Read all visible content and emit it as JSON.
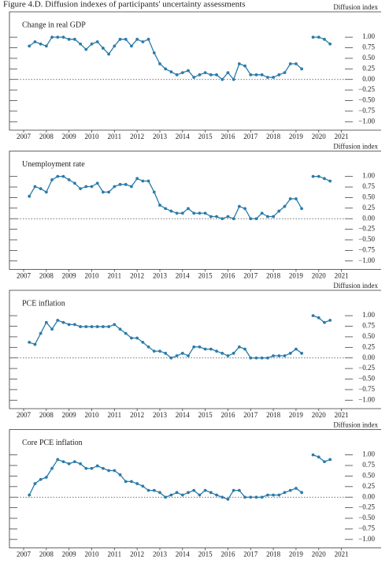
{
  "title": "Figure 4.D. Diffusion indexes of participants' uncertainty assessments",
  "chart_data": [
    {
      "type": "line",
      "title": "Change in real GDP",
      "y_axis_label": "Diffusion index",
      "color": "#2b7bab",
      "x": [
        2007.75,
        2008.0,
        2008.25,
        2008.5,
        2008.75,
        2009.0,
        2009.25,
        2009.5,
        2009.75,
        2010.0,
        2010.25,
        2010.5,
        2010.75,
        2011.0,
        2011.25,
        2011.5,
        2011.75,
        2012.0,
        2012.25,
        2012.5,
        2012.75,
        2013.0,
        2013.25,
        2013.5,
        2013.75,
        2014.0,
        2014.25,
        2014.5,
        2014.75,
        2015.0,
        2015.25,
        2015.5,
        2015.75,
        2016.0,
        2016.25,
        2016.5,
        2016.75,
        2017.0,
        2017.25,
        2017.5,
        2017.75,
        2018.0,
        2018.25,
        2018.5,
        2018.75,
        2019.0,
        2019.25,
        2019.5,
        2019.75,
        2020.0,
        2020.25,
        2020.5,
        2020.75,
        2021.0
      ],
      "values": [
        0.79,
        0.89,
        0.84,
        0.79,
        1.0,
        1.0,
        1.0,
        0.95,
        0.95,
        0.84,
        0.71,
        0.84,
        0.89,
        0.74,
        0.6,
        0.79,
        0.95,
        0.95,
        0.79,
        0.95,
        0.89,
        0.95,
        0.63,
        0.37,
        0.25,
        0.18,
        0.11,
        0.16,
        0.21,
        0.05,
        0.11,
        0.16,
        0.11,
        0.11,
        0.0,
        0.16,
        0.0,
        0.37,
        0.32,
        0.11,
        0.11,
        0.11,
        0.05,
        0.05,
        0.11,
        0.16,
        0.37,
        0.37,
        0.25,
        null,
        1.0,
        1.0,
        0.95,
        0.84
      ],
      "xlim": [
        2006.875,
        2022.0
      ],
      "xticks": [
        {
          "value": 2007.5,
          "label": "2007"
        },
        {
          "value": 2008.5,
          "label": "2008"
        },
        {
          "value": 2009.5,
          "label": "2009"
        },
        {
          "value": 2010.5,
          "label": "2010"
        },
        {
          "value": 2011.5,
          "label": "2011"
        },
        {
          "value": 2012.5,
          "label": "2012"
        },
        {
          "value": 2013.5,
          "label": "2013"
        },
        {
          "value": 2014.5,
          "label": "2014"
        },
        {
          "value": 2015.5,
          "label": "2015"
        },
        {
          "value": 2016.5,
          "label": "2016"
        },
        {
          "value": 2017.5,
          "label": "2017"
        },
        {
          "value": 2018.5,
          "label": "2018"
        },
        {
          "value": 2019.5,
          "label": "2019"
        },
        {
          "value": 2020.5,
          "label": "2020"
        },
        {
          "value": 2021.5,
          "label": "2021"
        }
      ],
      "ylim": [
        -1.2,
        1.6
      ],
      "yticks": [
        {
          "value": 1,
          "label": "1.00"
        },
        {
          "value": 0.75,
          "label": "0.75"
        },
        {
          "value": 0.5,
          "label": "0.50"
        },
        {
          "value": 0.25,
          "label": "0.25"
        },
        {
          "value": 0,
          "label": "0.00"
        },
        {
          "value": -0.25,
          "label": "−0.25"
        },
        {
          "value": -0.5,
          "label": "−0.50"
        },
        {
          "value": -0.75,
          "label": "−0.75"
        },
        {
          "value": -1,
          "label": "−1.00"
        }
      ]
    },
    {
      "type": "line",
      "title": "Unemployment rate",
      "y_axis_label": "Diffusion index",
      "color": "#2b7bab",
      "x": [
        2007.75,
        2008.0,
        2008.25,
        2008.5,
        2008.75,
        2009.0,
        2009.25,
        2009.5,
        2009.75,
        2010.0,
        2010.25,
        2010.5,
        2010.75,
        2011.0,
        2011.25,
        2011.5,
        2011.75,
        2012.0,
        2012.25,
        2012.5,
        2012.75,
        2013.0,
        2013.25,
        2013.5,
        2013.75,
        2014.0,
        2014.25,
        2014.5,
        2014.75,
        2015.0,
        2015.25,
        2015.5,
        2015.75,
        2016.0,
        2016.25,
        2016.5,
        2016.75,
        2017.0,
        2017.25,
        2017.5,
        2017.75,
        2018.0,
        2018.25,
        2018.5,
        2018.75,
        2019.0,
        2019.25,
        2019.5,
        2019.75,
        2020.0,
        2020.25,
        2020.5,
        2020.75,
        2021.0
      ],
      "values": [
        0.53,
        0.76,
        0.71,
        0.63,
        0.92,
        1.0,
        1.0,
        0.92,
        0.84,
        0.71,
        0.76,
        0.76,
        0.84,
        0.63,
        0.63,
        0.76,
        0.81,
        0.81,
        0.76,
        0.95,
        0.89,
        0.89,
        0.63,
        0.32,
        0.24,
        0.18,
        0.13,
        0.13,
        0.24,
        0.13,
        0.13,
        0.13,
        0.05,
        0.05,
        0.0,
        0.05,
        0.0,
        0.29,
        0.24,
        0.0,
        0.0,
        0.13,
        0.05,
        0.05,
        0.18,
        0.29,
        0.47,
        0.47,
        0.24,
        null,
        1.0,
        1.0,
        0.95,
        0.89
      ],
      "xlim": [
        2006.875,
        2022.0
      ],
      "xticks": [
        {
          "value": 2007.5,
          "label": "2007"
        },
        {
          "value": 2008.5,
          "label": "2008"
        },
        {
          "value": 2009.5,
          "label": "2009"
        },
        {
          "value": 2010.5,
          "label": "2010"
        },
        {
          "value": 2011.5,
          "label": "2011"
        },
        {
          "value": 2012.5,
          "label": "2012"
        },
        {
          "value": 2013.5,
          "label": "2013"
        },
        {
          "value": 2014.5,
          "label": "2014"
        },
        {
          "value": 2015.5,
          "label": "2015"
        },
        {
          "value": 2016.5,
          "label": "2016"
        },
        {
          "value": 2017.5,
          "label": "2017"
        },
        {
          "value": 2018.5,
          "label": "2018"
        },
        {
          "value": 2019.5,
          "label": "2019"
        },
        {
          "value": 2020.5,
          "label": "2020"
        },
        {
          "value": 2021.5,
          "label": "2021"
        }
      ],
      "ylim": [
        -1.2,
        1.6
      ],
      "yticks": [
        {
          "value": 1,
          "label": "1.00"
        },
        {
          "value": 0.75,
          "label": "0.75"
        },
        {
          "value": 0.5,
          "label": "0.50"
        },
        {
          "value": 0.25,
          "label": "0.25"
        },
        {
          "value": 0,
          "label": "0.00"
        },
        {
          "value": -0.25,
          "label": "−0.25"
        },
        {
          "value": -0.5,
          "label": "−0.50"
        },
        {
          "value": -0.75,
          "label": "−0.75"
        },
        {
          "value": -1,
          "label": "−1.00"
        }
      ]
    },
    {
      "type": "line",
      "title": "PCE inflation",
      "y_axis_label": "Diffusion index",
      "color": "#2b7bab",
      "x": [
        2007.75,
        2008.0,
        2008.25,
        2008.5,
        2008.75,
        2009.0,
        2009.25,
        2009.5,
        2009.75,
        2010.0,
        2010.25,
        2010.5,
        2010.75,
        2011.0,
        2011.25,
        2011.5,
        2011.75,
        2012.0,
        2012.25,
        2012.5,
        2012.75,
        2013.0,
        2013.25,
        2013.5,
        2013.75,
        2014.0,
        2014.25,
        2014.5,
        2014.75,
        2015.0,
        2015.25,
        2015.5,
        2015.75,
        2016.0,
        2016.25,
        2016.5,
        2016.75,
        2017.0,
        2017.25,
        2017.5,
        2017.75,
        2018.0,
        2018.25,
        2018.5,
        2018.75,
        2019.0,
        2019.25,
        2019.5,
        2019.75,
        2020.0,
        2020.25,
        2020.5,
        2020.75,
        2021.0
      ],
      "values": [
        0.37,
        0.32,
        0.58,
        0.84,
        0.68,
        0.89,
        0.84,
        0.79,
        0.79,
        0.74,
        0.74,
        0.74,
        0.74,
        0.74,
        0.74,
        0.79,
        0.68,
        0.58,
        0.47,
        0.47,
        0.37,
        0.26,
        0.16,
        0.16,
        0.11,
        0.0,
        0.05,
        0.11,
        0.05,
        0.26,
        0.26,
        0.21,
        0.21,
        0.16,
        0.11,
        0.05,
        0.11,
        0.26,
        0.21,
        0.0,
        0.0,
        0.0,
        0.0,
        0.05,
        0.05,
        0.05,
        0.11,
        0.21,
        0.11,
        null,
        1.0,
        0.95,
        0.84,
        0.89
      ],
      "xlim": [
        2006.875,
        2022.0
      ],
      "xticks": [
        {
          "value": 2007.5,
          "label": "2007"
        },
        {
          "value": 2008.5,
          "label": "2008"
        },
        {
          "value": 2009.5,
          "label": "2009"
        },
        {
          "value": 2010.5,
          "label": "2010"
        },
        {
          "value": 2011.5,
          "label": "2011"
        },
        {
          "value": 2012.5,
          "label": "2012"
        },
        {
          "value": 2013.5,
          "label": "2013"
        },
        {
          "value": 2014.5,
          "label": "2014"
        },
        {
          "value": 2015.5,
          "label": "2015"
        },
        {
          "value": 2016.5,
          "label": "2016"
        },
        {
          "value": 2017.5,
          "label": "2017"
        },
        {
          "value": 2018.5,
          "label": "2018"
        },
        {
          "value": 2019.5,
          "label": "2019"
        },
        {
          "value": 2020.5,
          "label": "2020"
        },
        {
          "value": 2021.5,
          "label": "2021"
        }
      ],
      "ylim": [
        -1.2,
        1.6
      ],
      "yticks": [
        {
          "value": 1,
          "label": "1.00"
        },
        {
          "value": 0.75,
          "label": "0.75"
        },
        {
          "value": 0.5,
          "label": "0.50"
        },
        {
          "value": 0.25,
          "label": "0.25"
        },
        {
          "value": 0,
          "label": "0.00"
        },
        {
          "value": -0.25,
          "label": "−0.25"
        },
        {
          "value": -0.5,
          "label": "−0.50"
        },
        {
          "value": -0.75,
          "label": "−0.75"
        },
        {
          "value": -1,
          "label": "−1.00"
        }
      ]
    },
    {
      "type": "line",
      "title": "Core PCE inflation",
      "y_axis_label": "Diffusion index",
      "color": "#2b7bab",
      "x": [
        2007.75,
        2008.0,
        2008.25,
        2008.5,
        2008.75,
        2009.0,
        2009.25,
        2009.5,
        2009.75,
        2010.0,
        2010.25,
        2010.5,
        2010.75,
        2011.0,
        2011.25,
        2011.5,
        2011.75,
        2012.0,
        2012.25,
        2012.5,
        2012.75,
        2013.0,
        2013.25,
        2013.5,
        2013.75,
        2014.0,
        2014.25,
        2014.5,
        2014.75,
        2015.0,
        2015.25,
        2015.5,
        2015.75,
        2016.0,
        2016.25,
        2016.5,
        2016.75,
        2017.0,
        2017.25,
        2017.5,
        2017.75,
        2018.0,
        2018.25,
        2018.5,
        2018.75,
        2019.0,
        2019.25,
        2019.5,
        2019.75,
        2020.0,
        2020.25,
        2020.5,
        2020.75,
        2021.0
      ],
      "values": [
        0.05,
        0.32,
        0.42,
        0.47,
        0.68,
        0.89,
        0.84,
        0.79,
        0.84,
        0.79,
        0.68,
        0.68,
        0.74,
        0.68,
        0.63,
        0.63,
        0.53,
        0.37,
        0.37,
        0.32,
        0.26,
        0.16,
        0.16,
        0.11,
        0.0,
        0.05,
        0.11,
        0.05,
        0.11,
        0.16,
        0.05,
        0.16,
        0.11,
        0.05,
        0.0,
        -0.05,
        0.16,
        0.16,
        0.0,
        0.0,
        0.0,
        0.0,
        0.05,
        0.05,
        0.05,
        0.11,
        0.16,
        0.21,
        0.11,
        null,
        1.0,
        0.95,
        0.84,
        0.89
      ],
      "xlim": [
        2006.875,
        2022.0
      ],
      "xticks": [
        {
          "value": 2007.5,
          "label": "2007"
        },
        {
          "value": 2008.5,
          "label": "2008"
        },
        {
          "value": 2009.5,
          "label": "2009"
        },
        {
          "value": 2010.5,
          "label": "2010"
        },
        {
          "value": 2011.5,
          "label": "2011"
        },
        {
          "value": 2012.5,
          "label": "2012"
        },
        {
          "value": 2013.5,
          "label": "2013"
        },
        {
          "value": 2014.5,
          "label": "2014"
        },
        {
          "value": 2015.5,
          "label": "2015"
        },
        {
          "value": 2016.5,
          "label": "2016"
        },
        {
          "value": 2017.5,
          "label": "2017"
        },
        {
          "value": 2018.5,
          "label": "2018"
        },
        {
          "value": 2019.5,
          "label": "2019"
        },
        {
          "value": 2020.5,
          "label": "2020"
        },
        {
          "value": 2021.5,
          "label": "2021"
        }
      ],
      "ylim": [
        -1.2,
        1.6
      ],
      "yticks": [
        {
          "value": 1,
          "label": "1.00"
        },
        {
          "value": 0.75,
          "label": "0.75"
        },
        {
          "value": 0.5,
          "label": "0.50"
        },
        {
          "value": 0.25,
          "label": "0.25"
        },
        {
          "value": 0,
          "label": "0.00"
        },
        {
          "value": -0.25,
          "label": "−0.25"
        },
        {
          "value": -0.5,
          "label": "−0.50"
        },
        {
          "value": -0.75,
          "label": "−0.75"
        },
        {
          "value": -1,
          "label": "−1.00"
        }
      ]
    }
  ]
}
